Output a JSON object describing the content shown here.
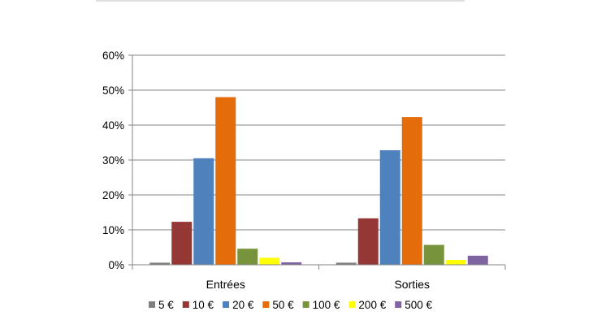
{
  "chart_data": {
    "type": "bar",
    "categories": [
      "Entrées",
      "Sorties"
    ],
    "series": [
      {
        "name": "5 €",
        "color": "#7f7f7f",
        "values": [
          0.6,
          0.6
        ]
      },
      {
        "name": "10 €",
        "color": "#953735",
        "values": [
          12.3,
          13.3
        ]
      },
      {
        "name": "20 €",
        "color": "#4f81bd",
        "values": [
          30.5,
          32.8
        ]
      },
      {
        "name": "50 €",
        "color": "#e46c0a",
        "values": [
          48.0,
          42.3
        ]
      },
      {
        "name": "100 €",
        "color": "#77933c",
        "values": [
          4.6,
          5.7
        ]
      },
      {
        "name": "200 €",
        "color": "#ffff00",
        "values": [
          2.0,
          1.4
        ]
      },
      {
        "name": "500 €",
        "color": "#8064a2",
        "values": [
          0.7,
          2.6
        ]
      }
    ],
    "ylim": [
      0,
      60
    ],
    "ytick_labels": [
      "0%",
      "10%",
      "20%",
      "30%",
      "40%",
      "50%",
      "60%"
    ],
    "grid": true,
    "legend_position": "bottom"
  }
}
